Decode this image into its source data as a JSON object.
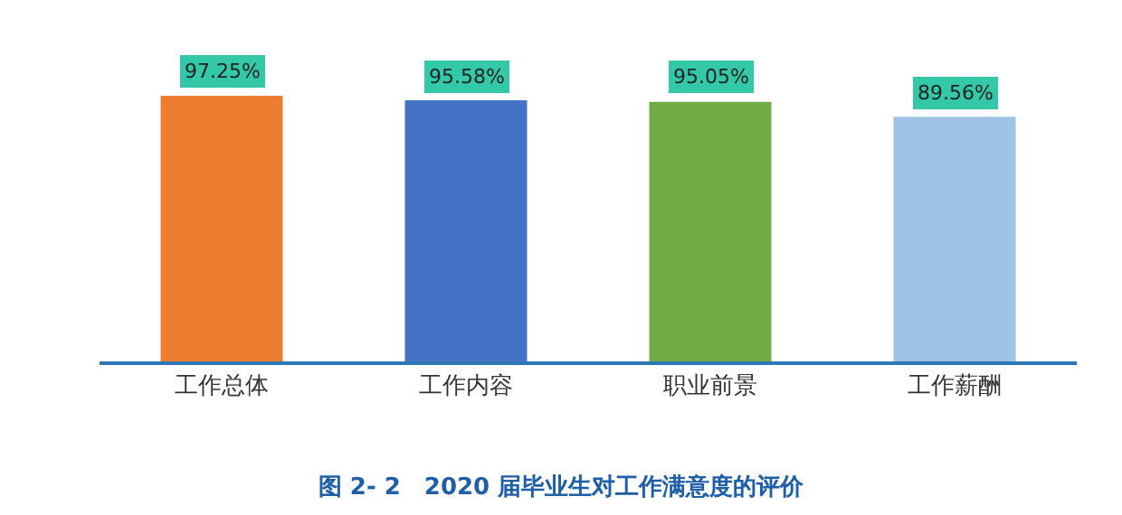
{
  "chart_data": {
    "type": "bar",
    "title": "图 2- 2　2020 届毕业生对工作满意度的评价",
    "categories": [
      "工作总体",
      "工作内容",
      "职业前景",
      "工作薪酬"
    ],
    "values": [
      97.25,
      95.58,
      95.05,
      89.56
    ],
    "colors": [
      "#ed7d31",
      "#4472c4",
      "#70ad47",
      "#9dc3e6"
    ],
    "value_labels": [
      "97.25%",
      "95.58%",
      "95.05%",
      "89.56%"
    ]
  }
}
